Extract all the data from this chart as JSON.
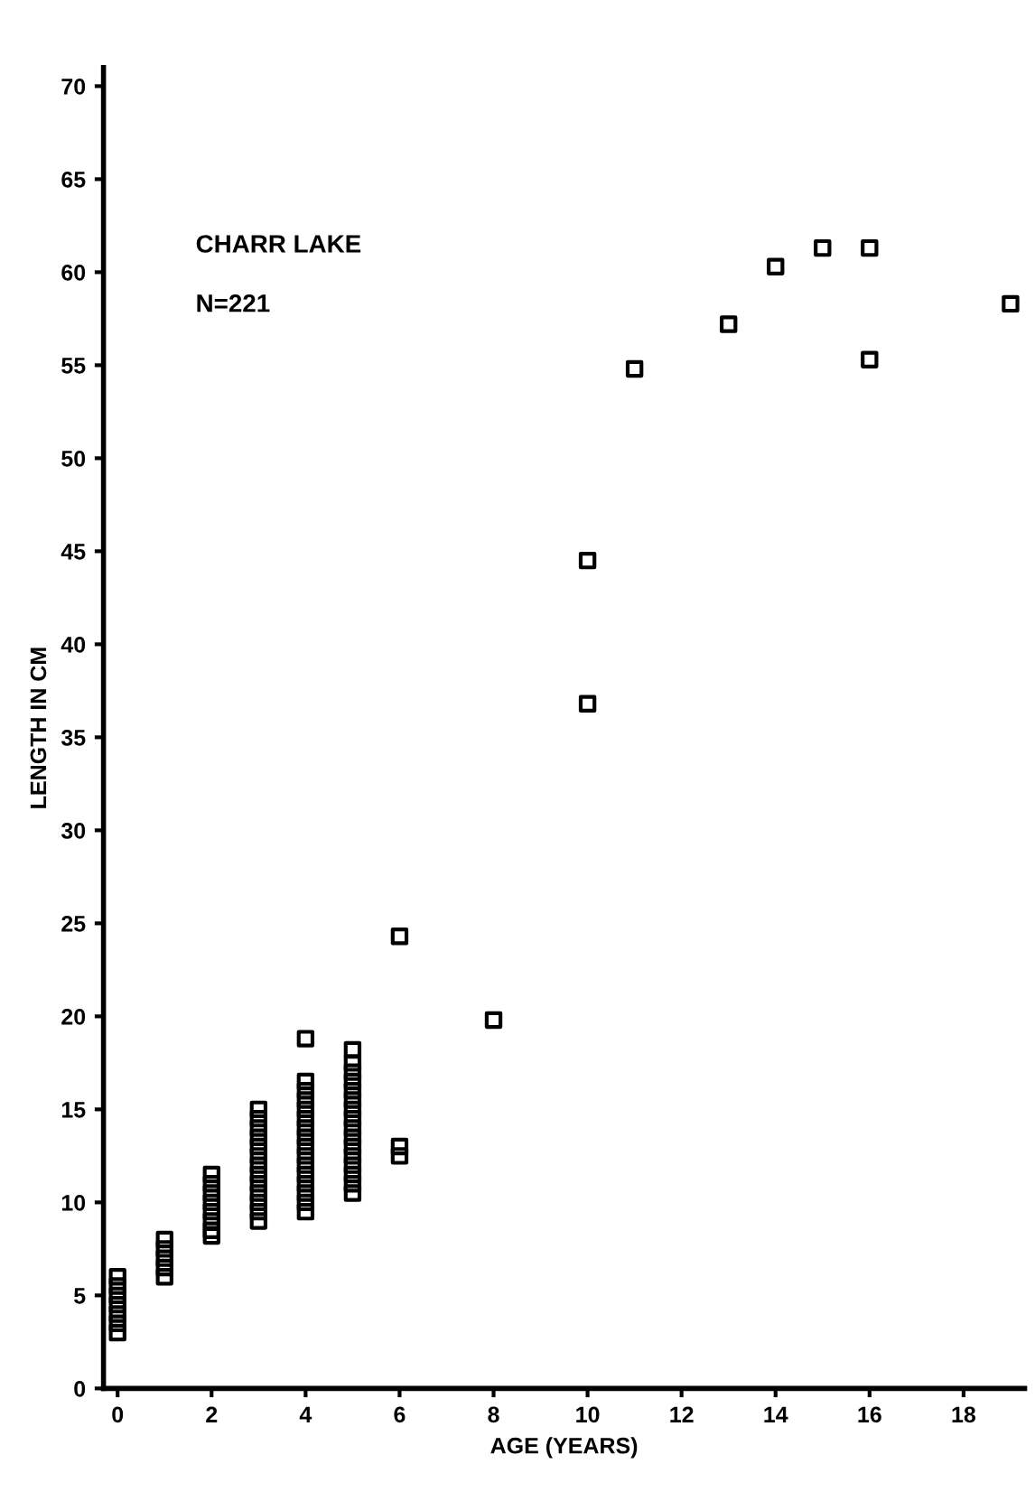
{
  "chart_data": {
    "type": "scatter",
    "title": "CHARR LAKE",
    "annotations": [
      "N=221"
    ],
    "xlabel": "AGE (YEARS)",
    "ylabel": "LENGTH IN CM",
    "series": [
      {
        "color": "#000000",
        "x": [
          0,
          0,
          0,
          0,
          0,
          0,
          0,
          1,
          1,
          1,
          1,
          1,
          2,
          2,
          2,
          2,
          2,
          2,
          2,
          2,
          3,
          3,
          3,
          3,
          3,
          3,
          3,
          3,
          3,
          3,
          3,
          3,
          3,
          4,
          4,
          4,
          4,
          4,
          4,
          4,
          4,
          4,
          4,
          4,
          4,
          4,
          4,
          4,
          4,
          5,
          5,
          5,
          5,
          5,
          5,
          5,
          5,
          5,
          5,
          5,
          5,
          5,
          5,
          5,
          5,
          6,
          6,
          6,
          8,
          10,
          10,
          11,
          13,
          14,
          15,
          16,
          16,
          19
        ],
        "values": [
          3,
          3.5,
          4,
          4.5,
          5,
          5.5,
          6,
          6,
          6.5,
          7,
          7.5,
          8,
          8.2,
          8.5,
          9,
          9.5,
          10,
          10.5,
          11,
          11.5,
          9,
          9.5,
          10,
          10.5,
          11,
          11.5,
          12,
          12.5,
          13,
          13.5,
          14,
          14.5,
          15,
          9.5,
          10,
          10.5,
          11,
          11.5,
          12,
          12.5,
          13,
          13.5,
          14,
          14.5,
          15,
          15.5,
          16,
          16.5,
          18.8,
          10.5,
          11,
          11.5,
          12,
          12.5,
          13,
          13.5,
          14,
          14.5,
          15,
          15.5,
          16,
          16.5,
          17,
          17.5,
          18.2,
          24.3,
          13,
          12.5,
          19.8,
          44.5,
          36.8,
          54.8,
          57.2,
          60.3,
          61.3,
          61.3,
          55.3,
          58.3
        ]
      }
    ],
    "marker": "square",
    "xlim": [
      -0.3,
      19.3
    ],
    "ylim": [
      0,
      71
    ],
    "xticks": [
      0,
      2,
      4,
      6,
      8,
      10,
      12,
      14,
      16,
      18
    ],
    "yticks": [
      0,
      5,
      10,
      15,
      20,
      25,
      30,
      35,
      40,
      45,
      50,
      55,
      60,
      65,
      70
    ],
    "grid": false,
    "legend": false
  }
}
